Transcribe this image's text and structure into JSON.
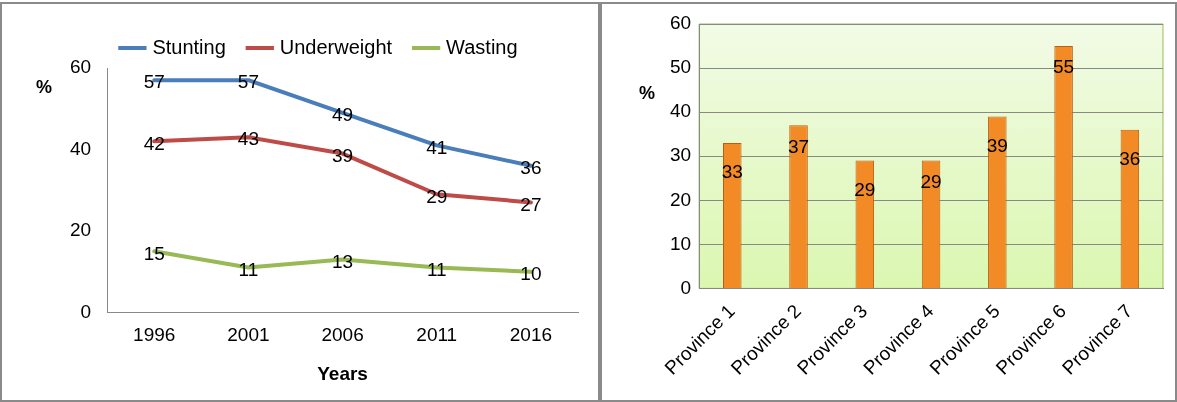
{
  "chart_data": [
    {
      "type": "line",
      "xlabel": "Years",
      "ylabel": "%",
      "categories": [
        "1996",
        "2001",
        "2006",
        "2011",
        "2016"
      ],
      "series": [
        {
          "name": "Stunting",
          "color": "#4a7ebb",
          "values": [
            57,
            57,
            49,
            41,
            36
          ]
        },
        {
          "name": "Underweight",
          "color": "#be4b48",
          "values": [
            42,
            43,
            39,
            29,
            27
          ]
        },
        {
          "name": "Wasting",
          "color": "#98b954",
          "values": [
            15,
            11,
            13,
            11,
            10
          ]
        }
      ],
      "ylim": [
        0,
        60
      ],
      "yticks": [
        0,
        20,
        40,
        60
      ],
      "grid": false,
      "legend": "top",
      "marker": "none",
      "line_style": "solid",
      "data_labels": true
    },
    {
      "type": "bar",
      "ylabel": "%",
      "categories": [
        "Province 1",
        "Province 2",
        "Province 3",
        "Province 4",
        "Province 5",
        "Province 6",
        "Province 7"
      ],
      "values": [
        33,
        37,
        29,
        29,
        39,
        55,
        36
      ],
      "color": "#f28a26",
      "ylim": [
        0,
        60
      ],
      "yticks": [
        0,
        10,
        20,
        30,
        40,
        50,
        60
      ],
      "grid": "y",
      "data_labels": true
    }
  ]
}
